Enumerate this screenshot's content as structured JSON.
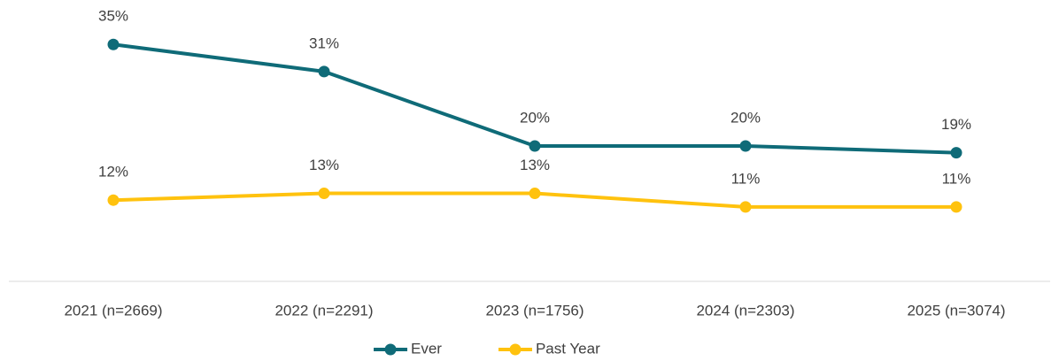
{
  "chart_data": {
    "type": "line",
    "categories": [
      "2021 (n=2669)",
      "2022 (n=2291)",
      "2023 (n=1756)",
      "2024 (n=2303)",
      "2025 (n=3074)"
    ],
    "series": [
      {
        "name": "Ever",
        "color": "#0f6b78",
        "values": [
          35,
          31,
          20,
          20,
          19
        ],
        "value_labels": [
          "35%",
          "31%",
          "20%",
          "20%",
          "19%"
        ]
      },
      {
        "name": "Past Year",
        "color": "#ffc20e",
        "values": [
          12,
          13,
          13,
          11,
          11
        ],
        "value_labels": [
          "12%",
          "13%",
          "13%",
          "11%",
          "11%"
        ]
      }
    ],
    "ylim": [
      0,
      40
    ],
    "legend": "bottom"
  }
}
